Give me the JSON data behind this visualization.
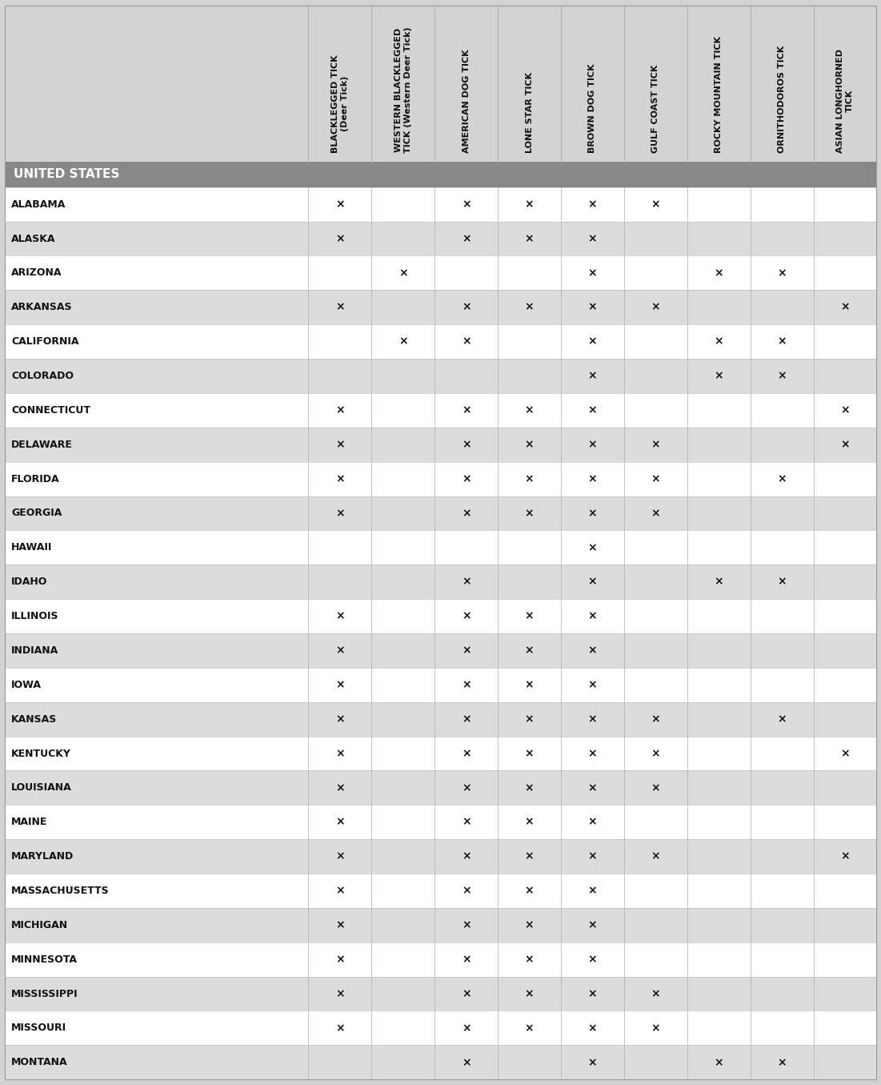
{
  "title": "UNITED STATES",
  "columns": [
    "BLACKLEGGED TICK\n(Deer Tick)",
    "WESTERN BLACKLEGGED\nTICK (Western Deer Tick)",
    "AMERICAN DOG TICK",
    "LONE STAR TICK",
    "BROWN DOG TICK",
    "GULF COAST TICK",
    "ROCKY MOUNTAIN TICK",
    "ORNITHODOROS TICK",
    "ASIAN LONGHORNED\nTICK"
  ],
  "states": [
    "ALABAMA",
    "ALASKA",
    "ARIZONA",
    "ARKANSAS",
    "CALIFORNIA",
    "COLORADO",
    "CONNECTICUT",
    "DELAWARE",
    "FLORIDA",
    "GEORGIA",
    "HAWAII",
    "IDAHO",
    "ILLINOIS",
    "INDIANA",
    "IOWA",
    "KANSAS",
    "KENTUCKY",
    "LOUISIANA",
    "MAINE",
    "MARYLAND",
    "MASSACHUSETTS",
    "MICHIGAN",
    "MINNESOTA",
    "MISSISSIPPI",
    "MISSOURI",
    "MONTANA"
  ],
  "data": {
    "ALABAMA": [
      1,
      0,
      1,
      1,
      1,
      1,
      0,
      0,
      0
    ],
    "ALASKA": [
      1,
      0,
      1,
      1,
      1,
      0,
      0,
      0,
      0
    ],
    "ARIZONA": [
      0,
      1,
      0,
      0,
      1,
      0,
      1,
      1,
      0
    ],
    "ARKANSAS": [
      1,
      0,
      1,
      1,
      1,
      1,
      0,
      0,
      1
    ],
    "CALIFORNIA": [
      0,
      1,
      1,
      0,
      1,
      0,
      1,
      1,
      0
    ],
    "COLORADO": [
      0,
      0,
      0,
      0,
      1,
      0,
      1,
      1,
      0
    ],
    "CONNECTICUT": [
      1,
      0,
      1,
      1,
      1,
      0,
      0,
      0,
      1
    ],
    "DELAWARE": [
      1,
      0,
      1,
      1,
      1,
      1,
      0,
      0,
      1
    ],
    "FLORIDA": [
      1,
      0,
      1,
      1,
      1,
      1,
      0,
      1,
      0
    ],
    "GEORGIA": [
      1,
      0,
      1,
      1,
      1,
      1,
      0,
      0,
      0
    ],
    "HAWAII": [
      0,
      0,
      0,
      0,
      1,
      0,
      0,
      0,
      0
    ],
    "IDAHO": [
      0,
      0,
      1,
      0,
      1,
      0,
      1,
      1,
      0
    ],
    "ILLINOIS": [
      1,
      0,
      1,
      1,
      1,
      0,
      0,
      0,
      0
    ],
    "INDIANA": [
      1,
      0,
      1,
      1,
      1,
      0,
      0,
      0,
      0
    ],
    "IOWA": [
      1,
      0,
      1,
      1,
      1,
      0,
      0,
      0,
      0
    ],
    "KANSAS": [
      1,
      0,
      1,
      1,
      1,
      1,
      0,
      1,
      0
    ],
    "KENTUCKY": [
      1,
      0,
      1,
      1,
      1,
      1,
      0,
      0,
      1
    ],
    "LOUISIANA": [
      1,
      0,
      1,
      1,
      1,
      1,
      0,
      0,
      0
    ],
    "MAINE": [
      1,
      0,
      1,
      1,
      1,
      0,
      0,
      0,
      0
    ],
    "MARYLAND": [
      1,
      0,
      1,
      1,
      1,
      1,
      0,
      0,
      1
    ],
    "MASSACHUSETTS": [
      1,
      0,
      1,
      1,
      1,
      0,
      0,
      0,
      0
    ],
    "MICHIGAN": [
      1,
      0,
      1,
      1,
      1,
      0,
      0,
      0,
      0
    ],
    "MINNESOTA": [
      1,
      0,
      1,
      1,
      1,
      0,
      0,
      0,
      0
    ],
    "MISSISSIPPI": [
      1,
      0,
      1,
      1,
      1,
      1,
      0,
      0,
      0
    ],
    "MISSOURI": [
      1,
      0,
      1,
      1,
      1,
      1,
      0,
      0,
      0
    ],
    "MONTANA": [
      0,
      0,
      1,
      0,
      1,
      0,
      1,
      1,
      0
    ]
  },
  "header_bg": "#d3d3d3",
  "title_bg": "#888888",
  "title_fg": "#ffffff",
  "row_bg_even": "#ffffff",
  "row_bg_odd": "#dcdcdc",
  "x_mark": "×",
  "fig_w": 11.01,
  "fig_h": 13.55,
  "dpi": 100
}
